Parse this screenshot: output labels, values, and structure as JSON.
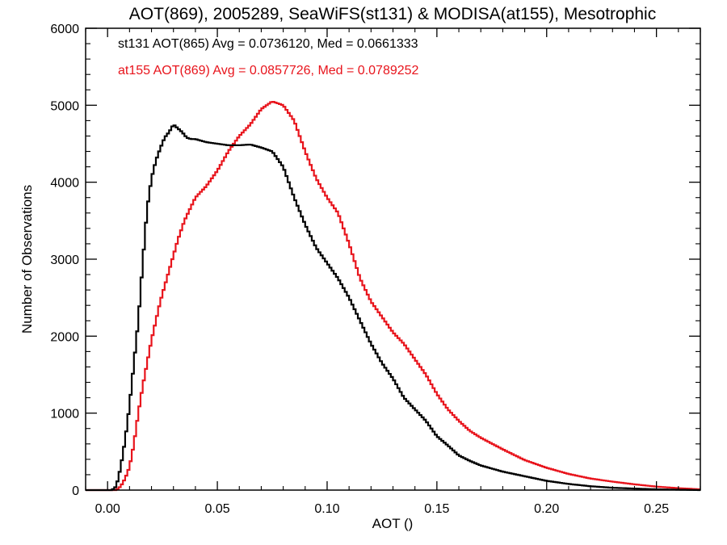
{
  "chart_data": {
    "type": "line",
    "title": "AOT(869), 2005289, SeaWiFS(st131) & MODISA(at155), Mesotrophic",
    "xlabel": "AOT ()",
    "ylabel": "Number of Observations",
    "xlim": [
      -0.01,
      0.27
    ],
    "ylim": [
      0,
      6000
    ],
    "x_ticks": [
      "0.00",
      "0.05",
      "0.10",
      "0.15",
      "0.20",
      "0.25"
    ],
    "y_ticks": [
      "0",
      "1000",
      "2000",
      "3000",
      "4000",
      "5000",
      "6000"
    ],
    "grid": false,
    "annotations": [
      {
        "text": "st131 AOT(865) Avg = 0.0736120, Med = 0.0661333",
        "color": "#000000"
      },
      {
        "text": "at155 AOT(869) Avg = 0.0857726, Med = 0.0789252",
        "color": "#e8141c"
      }
    ],
    "series": [
      {
        "color": "#000000",
        "x": [
          -0.01,
          0.0,
          0.002,
          0.004,
          0.006,
          0.008,
          0.01,
          0.012,
          0.014,
          0.016,
          0.018,
          0.02,
          0.022,
          0.024,
          0.026,
          0.028,
          0.03,
          0.032,
          0.034,
          0.036,
          0.038,
          0.04,
          0.045,
          0.05,
          0.055,
          0.06,
          0.065,
          0.07,
          0.075,
          0.08,
          0.085,
          0.09,
          0.095,
          0.1,
          0.105,
          0.11,
          0.115,
          0.12,
          0.125,
          0.13,
          0.135,
          0.14,
          0.145,
          0.15,
          0.155,
          0.16,
          0.165,
          0.17,
          0.18,
          0.19,
          0.2,
          0.21,
          0.22,
          0.23,
          0.24,
          0.25,
          0.26,
          0.27
        ],
        "y": [
          0,
          0,
          0,
          50,
          300,
          650,
          1100,
          1650,
          2200,
          2950,
          3650,
          4050,
          4280,
          4440,
          4580,
          4650,
          4750,
          4700,
          4650,
          4580,
          4560,
          4560,
          4520,
          4500,
          4480,
          4480,
          4490,
          4450,
          4400,
          4200,
          3800,
          3450,
          3150,
          2950,
          2750,
          2500,
          2200,
          1900,
          1650,
          1450,
          1200,
          1050,
          900,
          700,
          580,
          450,
          380,
          320,
          240,
          180,
          120,
          80,
          50,
          30,
          20,
          10,
          5,
          0
        ]
      },
      {
        "color": "#e8141c",
        "x": [
          -0.01,
          0.004,
          0.006,
          0.008,
          0.01,
          0.012,
          0.014,
          0.016,
          0.018,
          0.02,
          0.022,
          0.024,
          0.026,
          0.028,
          0.03,
          0.032,
          0.035,
          0.04,
          0.045,
          0.05,
          0.055,
          0.06,
          0.065,
          0.07,
          0.075,
          0.08,
          0.085,
          0.09,
          0.095,
          0.1,
          0.105,
          0.11,
          0.115,
          0.12,
          0.125,
          0.13,
          0.135,
          0.14,
          0.145,
          0.15,
          0.155,
          0.16,
          0.165,
          0.17,
          0.18,
          0.19,
          0.2,
          0.21,
          0.22,
          0.23,
          0.24,
          0.25,
          0.26,
          0.27
        ],
        "y": [
          0,
          0,
          50,
          150,
          300,
          600,
          1000,
          1350,
          1650,
          1950,
          2200,
          2450,
          2650,
          2850,
          3050,
          3250,
          3500,
          3800,
          3950,
          4150,
          4400,
          4600,
          4750,
          4950,
          5050,
          5000,
          4800,
          4400,
          4050,
          3800,
          3600,
          3200,
          2750,
          2450,
          2250,
          2050,
          1900,
          1700,
          1500,
          1250,
          1050,
          900,
          770,
          680,
          530,
          390,
          290,
          210,
          150,
          110,
          75,
          45,
          25,
          10
        ]
      }
    ]
  }
}
